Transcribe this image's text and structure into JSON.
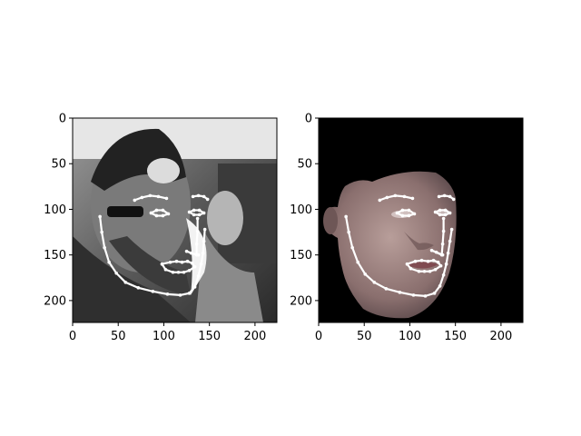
{
  "chart_data": [
    {
      "type": "image",
      "panel": "left",
      "image_description": "grayscale photo with 2D facial landmarks overlaid",
      "xlim": [
        0,
        224
      ],
      "ylim": [
        224,
        0
      ],
      "xticks": [
        0,
        50,
        100,
        150,
        200
      ],
      "yticks": [
        0,
        50,
        100,
        150,
        200
      ],
      "landmarks": {
        "jaw": [
          [
            30,
            108
          ],
          [
            32,
            125
          ],
          [
            35,
            142
          ],
          [
            40,
            158
          ],
          [
            48,
            170
          ],
          [
            58,
            180
          ],
          [
            72,
            186
          ],
          [
            88,
            190
          ],
          [
            104,
            193
          ],
          [
            118,
            194
          ],
          [
            128,
            192
          ],
          [
            134,
            185
          ],
          [
            138,
            173
          ],
          [
            141,
            160
          ],
          [
            143,
            148
          ],
          [
            144,
            135
          ],
          [
            145,
            122
          ]
        ],
        "brow_left": [
          [
            68,
            90
          ],
          [
            76,
            87
          ],
          [
            85,
            85
          ],
          [
            94,
            86
          ],
          [
            103,
            88
          ]
        ],
        "brow_right": [
          [
            132,
            86
          ],
          [
            138,
            85
          ],
          [
            144,
            86
          ],
          [
            148,
            89
          ]
        ],
        "eye_left": [
          [
            86,
            104
          ],
          [
            92,
            101
          ],
          [
            99,
            101
          ],
          [
            105,
            105
          ],
          [
            99,
            107
          ],
          [
            92,
            107
          ]
        ],
        "eye_right": [
          [
            128,
            103
          ],
          [
            133,
            101
          ],
          [
            139,
            101
          ],
          [
            144,
            104
          ],
          [
            139,
            106
          ],
          [
            133,
            106
          ]
        ],
        "nose": [
          [
            137,
            110
          ],
          [
            137,
            124
          ],
          [
            136,
            138
          ],
          [
            136,
            150
          ],
          [
            125,
            146
          ],
          [
            130,
            148
          ],
          [
            138,
            150
          ]
        ],
        "mouth": [
          [
            98,
            160
          ],
          [
            107,
            158
          ],
          [
            114,
            157
          ],
          [
            120,
            158
          ],
          [
            126,
            157
          ],
          [
            131,
            159
          ],
          [
            134,
            163
          ],
          [
            128,
            167
          ],
          [
            122,
            169
          ],
          [
            116,
            169
          ],
          [
            110,
            169
          ],
          [
            102,
            166
          ]
        ]
      }
    },
    {
      "type": "image",
      "panel": "right",
      "image_description": "3D rendered face on black background with 2D facial landmarks overlaid",
      "xlim": [
        0,
        224
      ],
      "ylim": [
        224,
        0
      ],
      "xticks": [
        0,
        50,
        100,
        150,
        200
      ],
      "yticks": [
        0,
        50,
        100,
        150,
        200
      ],
      "landmarks": {
        "jaw": [
          [
            30,
            108
          ],
          [
            33,
            125
          ],
          [
            37,
            142
          ],
          [
            43,
            158
          ],
          [
            51,
            171
          ],
          [
            61,
            180
          ],
          [
            74,
            187
          ],
          [
            89,
            191
          ],
          [
            104,
            194
          ],
          [
            117,
            195
          ],
          [
            127,
            192
          ],
          [
            133,
            184
          ],
          [
            137,
            172
          ],
          [
            140,
            160
          ],
          [
            142,
            148
          ],
          [
            144,
            135
          ],
          [
            146,
            122
          ]
        ],
        "brow_left": [
          [
            67,
            90
          ],
          [
            75,
            87
          ],
          [
            84,
            85
          ],
          [
            94,
            86
          ],
          [
            103,
            88
          ]
        ],
        "brow_right": [
          [
            132,
            86
          ],
          [
            138,
            85
          ],
          [
            144,
            86
          ],
          [
            148,
            89
          ]
        ],
        "eye_left": [
          [
            86,
            104
          ],
          [
            92,
            101
          ],
          [
            99,
            101
          ],
          [
            105,
            105
          ],
          [
            99,
            107
          ],
          [
            92,
            107
          ]
        ],
        "eye_right": [
          [
            128,
            103
          ],
          [
            133,
            101
          ],
          [
            139,
            101
          ],
          [
            144,
            104
          ],
          [
            139,
            106
          ],
          [
            133,
            106
          ]
        ],
        "nose": [
          [
            137,
            110
          ],
          [
            137,
            124
          ],
          [
            136,
            138
          ],
          [
            135,
            150
          ],
          [
            124,
            145
          ],
          [
            129,
            147
          ],
          [
            136,
            150
          ]
        ],
        "mouth": [
          [
            97,
            160
          ],
          [
            106,
            157
          ],
          [
            113,
            156
          ],
          [
            120,
            157
          ],
          [
            126,
            156
          ],
          [
            131,
            158
          ],
          [
            134,
            162
          ],
          [
            128,
            166
          ],
          [
            122,
            168
          ],
          [
            116,
            168
          ],
          [
            110,
            168
          ],
          [
            101,
            165
          ]
        ]
      }
    }
  ]
}
